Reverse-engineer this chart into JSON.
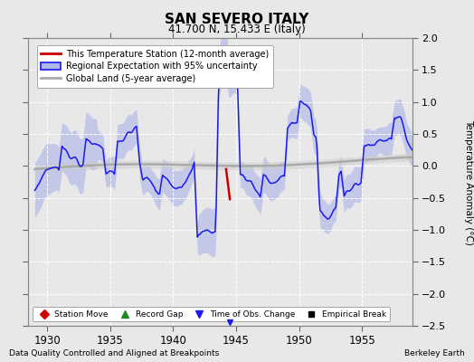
{
  "title": "SAN SEVERO ITALY",
  "subtitle": "41.700 N, 15.433 E (Italy)",
  "ylabel": "Temperature Anomaly (°C)",
  "xlabel_note": "Data Quality Controlled and Aligned at Breakpoints",
  "source_note": "Berkeley Earth",
  "xlim": [
    1928.5,
    1959.0
  ],
  "ylim": [
    -2.5,
    2.0
  ],
  "yticks": [
    -2.5,
    -2.0,
    -1.5,
    -1.0,
    -0.5,
    0.0,
    0.5,
    1.0,
    1.5,
    2.0
  ],
  "xticks": [
    1930,
    1935,
    1940,
    1945,
    1950,
    1955
  ],
  "bg_color": "#e8e8e8",
  "plot_bg_color": "#e8e8e8",
  "grid_color": "#ffffff",
  "blue_line_color": "#1a1aee",
  "blue_fill_color": "#b0b8e8",
  "gray_line_color": "#aaaaaa",
  "gray_fill_color": "#cccccc",
  "red_color": "#cc0000",
  "time_obs_x": 1944.5,
  "time_obs_y": -2.45
}
